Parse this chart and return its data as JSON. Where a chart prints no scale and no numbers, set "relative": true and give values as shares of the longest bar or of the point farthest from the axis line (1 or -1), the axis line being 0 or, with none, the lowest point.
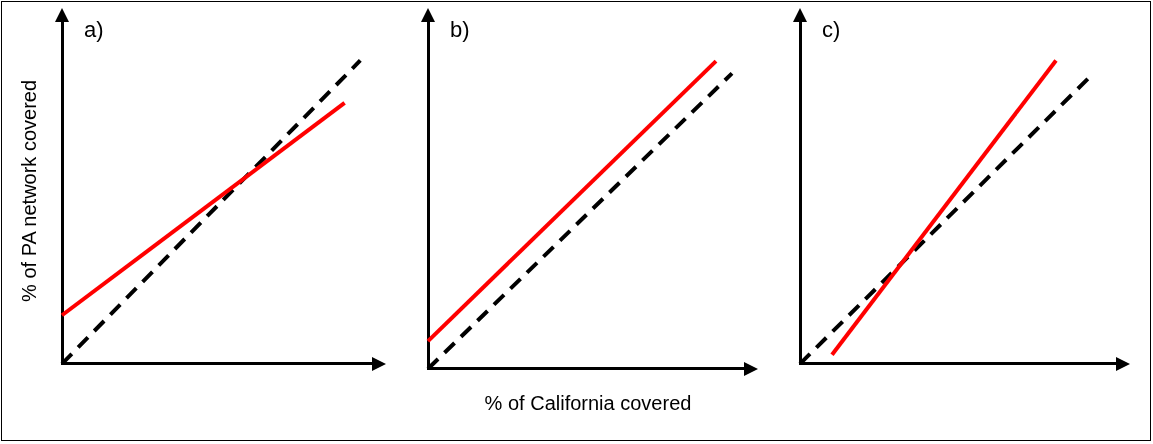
{
  "chart_data": [
    {
      "type": "line",
      "title": "a)",
      "ylabel": "% of PA network covered",
      "relative": true,
      "legend": false,
      "marker": "none",
      "grid": false,
      "categories": [
        null,
        null,
        null,
        null,
        null,
        null,
        null,
        null,
        null,
        null,
        null,
        null,
        null,
        null,
        null,
        null,
        null,
        null,
        null,
        null,
        null
      ],
      "series": [
        {
          "color": "#ff0000",
          "values": [
            0.16,
            null,
            null,
            null,
            null,
            null,
            null,
            null,
            null,
            null,
            null,
            null,
            null,
            null,
            null,
            null,
            null,
            null,
            0.86,
            null,
            null
          ],
          "line_style": "solid"
        },
        {
          "color": "#000000",
          "values": [
            0,
            null,
            null,
            null,
            null,
            null,
            null,
            null,
            null,
            null,
            null,
            null,
            null,
            null,
            null,
            null,
            null,
            null,
            null,
            1,
            null
          ],
          "line_style": "dashed"
        }
      ]
    },
    {
      "type": "line",
      "title": "b)",
      "xlabel": "% of California covered",
      "relative": true,
      "legend": false,
      "marker": "none",
      "grid": false,
      "categories": [
        null,
        null,
        null,
        null,
        null,
        null,
        null,
        null,
        null,
        null,
        null,
        null,
        null,
        null,
        null,
        null,
        null,
        null,
        null,
        null,
        null
      ],
      "series": [
        {
          "color": "#ff0000",
          "values": [
            0.09,
            null,
            null,
            null,
            null,
            null,
            null,
            null,
            null,
            null,
            null,
            null,
            null,
            null,
            null,
            null,
            null,
            null,
            1,
            null,
            null
          ],
          "line_style": "solid"
        },
        {
          "color": "#000000",
          "values": [
            0,
            null,
            null,
            null,
            null,
            null,
            null,
            null,
            null,
            null,
            null,
            null,
            null,
            null,
            null,
            null,
            null,
            null,
            null,
            0.96,
            null
          ],
          "line_style": "dashed"
        }
      ]
    },
    {
      "type": "line",
      "title": "c)",
      "relative": true,
      "legend": false,
      "marker": "none",
      "grid": false,
      "categories": [
        null,
        null,
        null,
        null,
        null,
        null,
        null,
        null,
        null,
        null,
        null,
        null,
        null,
        null,
        null,
        null,
        null,
        null,
        null,
        null,
        null
      ],
      "series": [
        {
          "color": "#ff0000",
          "values": [
            null,
            null,
            0.03,
            null,
            null,
            null,
            null,
            null,
            null,
            null,
            null,
            null,
            null,
            null,
            null,
            null,
            1,
            null,
            null,
            null,
            null
          ],
          "line_style": "solid"
        },
        {
          "color": "#000000",
          "values": [
            0,
            null,
            null,
            null,
            null,
            null,
            null,
            null,
            null,
            null,
            null,
            null,
            null,
            null,
            null,
            null,
            null,
            null,
            0.94,
            null,
            null
          ],
          "line_style": "dashed"
        }
      ]
    }
  ]
}
